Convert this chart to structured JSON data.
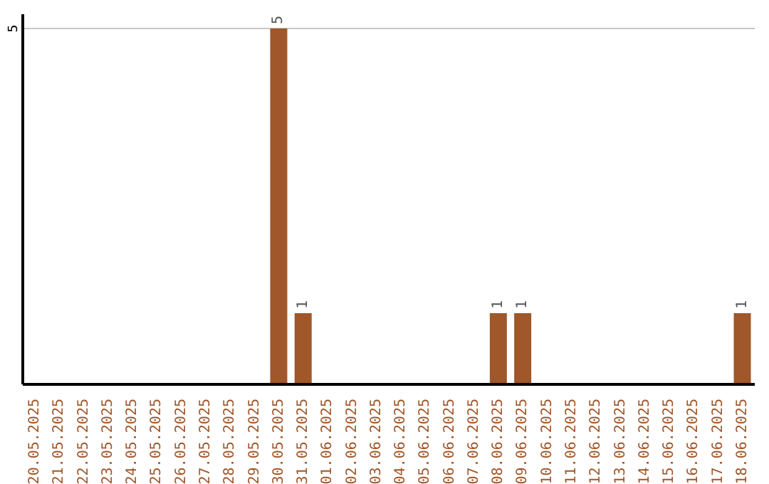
{
  "chart_data": {
    "type": "bar",
    "categories": [
      "20.05.2025",
      "21.05.2025",
      "22.05.2025",
      "23.05.2025",
      "24.05.2025",
      "25.05.2025",
      "26.05.2025",
      "27.05.2025",
      "28.05.2025",
      "29.05.2025",
      "30.05.2025",
      "31.05.2025",
      "01.06.2025",
      "02.06.2025",
      "03.06.2025",
      "04.06.2025",
      "05.06.2025",
      "06.06.2025",
      "07.06.2025",
      "08.06.2025",
      "09.06.2025",
      "10.06.2025",
      "11.06.2025",
      "12.06.2025",
      "13.06.2025",
      "14.06.2025",
      "15.06.2025",
      "16.06.2025",
      "17.06.2025",
      "18.06.2025"
    ],
    "values": [
      0,
      0,
      0,
      0,
      0,
      0,
      0,
      0,
      0,
      0,
      5,
      1,
      0,
      0,
      0,
      0,
      0,
      0,
      0,
      1,
      1,
      0,
      0,
      0,
      0,
      0,
      0,
      0,
      0,
      1
    ],
    "value_labels": [
      null,
      null,
      null,
      null,
      null,
      null,
      null,
      null,
      null,
      null,
      "5",
      "1",
      null,
      null,
      null,
      null,
      null,
      null,
      null,
      "1",
      "1",
      null,
      null,
      null,
      null,
      null,
      null,
      null,
      null,
      "1"
    ],
    "color": "#a0572a",
    "ylim": [
      0,
      5.2
    ],
    "yticks": [
      5
    ],
    "grid": "y"
  }
}
